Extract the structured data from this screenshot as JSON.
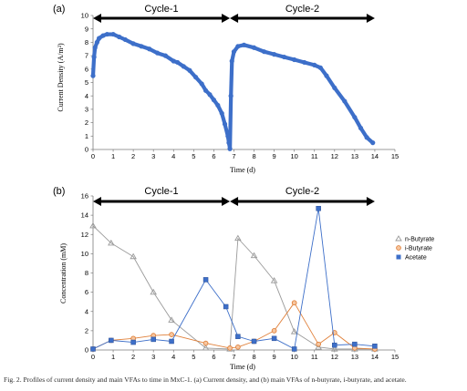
{
  "caption": "Fig. 2. Profiles of current density and main VFAs to time in MxC-1. (a) Current density, and (b) main VFAs of n-butyrate, i-butyrate, and acetate.",
  "colors": {
    "current": "#3d6fc9",
    "n_butyrate": "#9a9a9a",
    "i_butyrate": "#e0803a",
    "acetate": "#3d6fc9"
  },
  "chart_data": [
    {
      "type": "line",
      "panel_label": "(a)",
      "xlabel": "Time (d)",
      "ylabel": "Current Density (A/m²)",
      "xlim": [
        0,
        15
      ],
      "ylim": [
        0,
        10
      ],
      "xticks": [
        0,
        1,
        2,
        3,
        4,
        5,
        6,
        7,
        8,
        9,
        10,
        11,
        12,
        13,
        14,
        15
      ],
      "yticks": [
        0,
        1,
        2,
        3,
        4,
        5,
        6,
        7,
        8,
        9,
        10
      ],
      "grid": false,
      "cycles": [
        {
          "label": "Cycle-1",
          "x_start": 0,
          "x_end": 6.8
        },
        {
          "label": "Cycle-2",
          "x_start": 6.8,
          "x_end": 14.0
        }
      ],
      "series": [
        {
          "marker": "filled-dense",
          "x": [
            0,
            0.05,
            0.1,
            0.2,
            0.3,
            0.5,
            0.7,
            1.0,
            1.3,
            1.6,
            2.0,
            2.4,
            2.8,
            3.2,
            3.6,
            4.0,
            4.2,
            4.5,
            4.8,
            5.1,
            5.4,
            5.6,
            5.8,
            6.0,
            6.2,
            6.4,
            6.55,
            6.7,
            6.75,
            6.8,
            6.85,
            6.9,
            7.0,
            7.2,
            7.5,
            8.0,
            8.5,
            9.0,
            9.5,
            10.0,
            10.5,
            11.0,
            11.3,
            11.6,
            12.0,
            12.5,
            13.0,
            13.3,
            13.6,
            13.9
          ],
          "y": [
            5.5,
            6.9,
            7.6,
            8.0,
            8.3,
            8.5,
            8.6,
            8.6,
            8.4,
            8.2,
            7.9,
            7.7,
            7.5,
            7.2,
            7.0,
            6.6,
            6.5,
            6.2,
            5.9,
            5.4,
            4.9,
            4.4,
            4.1,
            3.7,
            3.3,
            2.7,
            1.9,
            1.0,
            0.5,
            0.05,
            4.0,
            6.6,
            7.3,
            7.7,
            7.8,
            7.6,
            7.3,
            7.1,
            6.9,
            6.7,
            6.5,
            6.3,
            6.1,
            5.5,
            4.6,
            3.6,
            2.4,
            1.6,
            0.9,
            0.5
          ]
        }
      ]
    },
    {
      "type": "line",
      "panel_label": "(b)",
      "xlabel": "Time (d)",
      "ylabel": "Concentration (mM)",
      "xlim": [
        0,
        15
      ],
      "ylim": [
        0,
        16
      ],
      "xticks": [
        0,
        1,
        2,
        3,
        4,
        5,
        6,
        7,
        8,
        9,
        10,
        11,
        12,
        13,
        14,
        15
      ],
      "yticks": [
        0,
        2,
        4,
        6,
        8,
        10,
        12,
        14,
        16
      ],
      "grid": false,
      "legend_position": "right",
      "cycles": [
        {
          "label": "Cycle-1",
          "x_start": 0,
          "x_end": 6.8
        },
        {
          "label": "Cycle-2",
          "x_start": 6.8,
          "x_end": 14.0
        }
      ],
      "series": [
        {
          "name": "n-Butyrate",
          "marker": "triangle",
          "x": [
            0,
            0.9,
            2.0,
            3.0,
            3.9,
            5.6,
            6.8,
            7.2,
            8.0,
            9.0,
            10.0,
            11.2,
            12.0,
            13.0,
            14.0
          ],
          "y": [
            12.9,
            11.1,
            9.7,
            6.0,
            3.1,
            0.2,
            0.1,
            11.6,
            9.8,
            7.2,
            1.9,
            0.3,
            0.1,
            0.1,
            0.1
          ]
        },
        {
          "name": "i-Butyrate",
          "marker": "circle",
          "x": [
            0,
            0.9,
            2.0,
            3.0,
            3.9,
            5.6,
            6.8,
            7.2,
            8.0,
            9.0,
            10.0,
            11.2,
            12.0,
            13.0,
            14.0
          ],
          "y": [
            0.1,
            1.0,
            1.2,
            1.5,
            1.6,
            0.7,
            0.2,
            0.3,
            0.9,
            2.0,
            4.9,
            0.6,
            1.8,
            0.2,
            0.1
          ]
        },
        {
          "name": "Acetate",
          "marker": "square",
          "x": [
            0,
            0.9,
            2.0,
            3.0,
            3.9,
            5.6,
            6.6,
            7.2,
            8.0,
            9.0,
            10.0,
            11.2,
            12.0,
            13.0,
            14.0
          ],
          "y": [
            0.1,
            1.0,
            0.8,
            1.1,
            0.9,
            7.3,
            4.5,
            1.4,
            0.9,
            1.2,
            0.1,
            14.7,
            0.5,
            0.6,
            0.4
          ]
        }
      ]
    }
  ]
}
